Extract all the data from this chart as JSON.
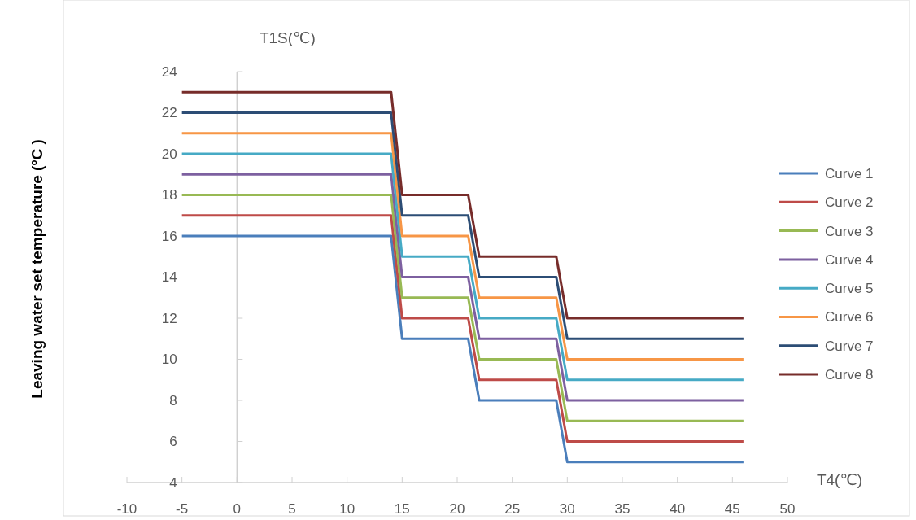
{
  "chart_data": {
    "type": "line",
    "xlabel": "T4(℃)",
    "ylabel": "Leaving water set temperature (ºC )",
    "annotations": [
      "T1S(℃)"
    ],
    "x": [
      -5,
      14,
      15,
      21,
      22,
      29,
      30,
      46
    ],
    "xlim": [
      -10,
      50
    ],
    "xticks": [
      -10,
      -5,
      0,
      5,
      10,
      15,
      20,
      25,
      30,
      35,
      40,
      45,
      50
    ],
    "ylim": [
      4,
      24
    ],
    "yticks": [
      4,
      6,
      8,
      10,
      12,
      14,
      16,
      18,
      20,
      22,
      24
    ],
    "legend": "right",
    "series": [
      {
        "name": "Curve 1",
        "color": "#4a7ebb",
        "values": [
          16,
          16,
          11,
          11,
          8,
          8,
          5,
          5
        ]
      },
      {
        "name": "Curve 2",
        "color": "#be4b48",
        "values": [
          17,
          17,
          12,
          12,
          9,
          9,
          6,
          6
        ]
      },
      {
        "name": "Curve 3",
        "color": "#98b954",
        "values": [
          18,
          18,
          13,
          13,
          10,
          10,
          7,
          7
        ]
      },
      {
        "name": "Curve 4",
        "color": "#7d60a0",
        "values": [
          19,
          19,
          14,
          14,
          11,
          11,
          8,
          8
        ]
      },
      {
        "name": "Curve 5",
        "color": "#46aac5",
        "values": [
          20,
          20,
          15,
          15,
          12,
          12,
          9,
          9
        ]
      },
      {
        "name": "Curve 6",
        "color": "#f79646",
        "values": [
          21,
          21,
          16,
          16,
          13,
          13,
          10,
          10
        ]
      },
      {
        "name": "Curve 7",
        "color": "#2c4d75",
        "values": [
          22,
          22,
          17,
          17,
          14,
          14,
          11,
          11
        ]
      },
      {
        "name": "Curve 8",
        "color": "#772c2a",
        "values": [
          23,
          23,
          18,
          18,
          15,
          15,
          12,
          12
        ]
      }
    ]
  }
}
